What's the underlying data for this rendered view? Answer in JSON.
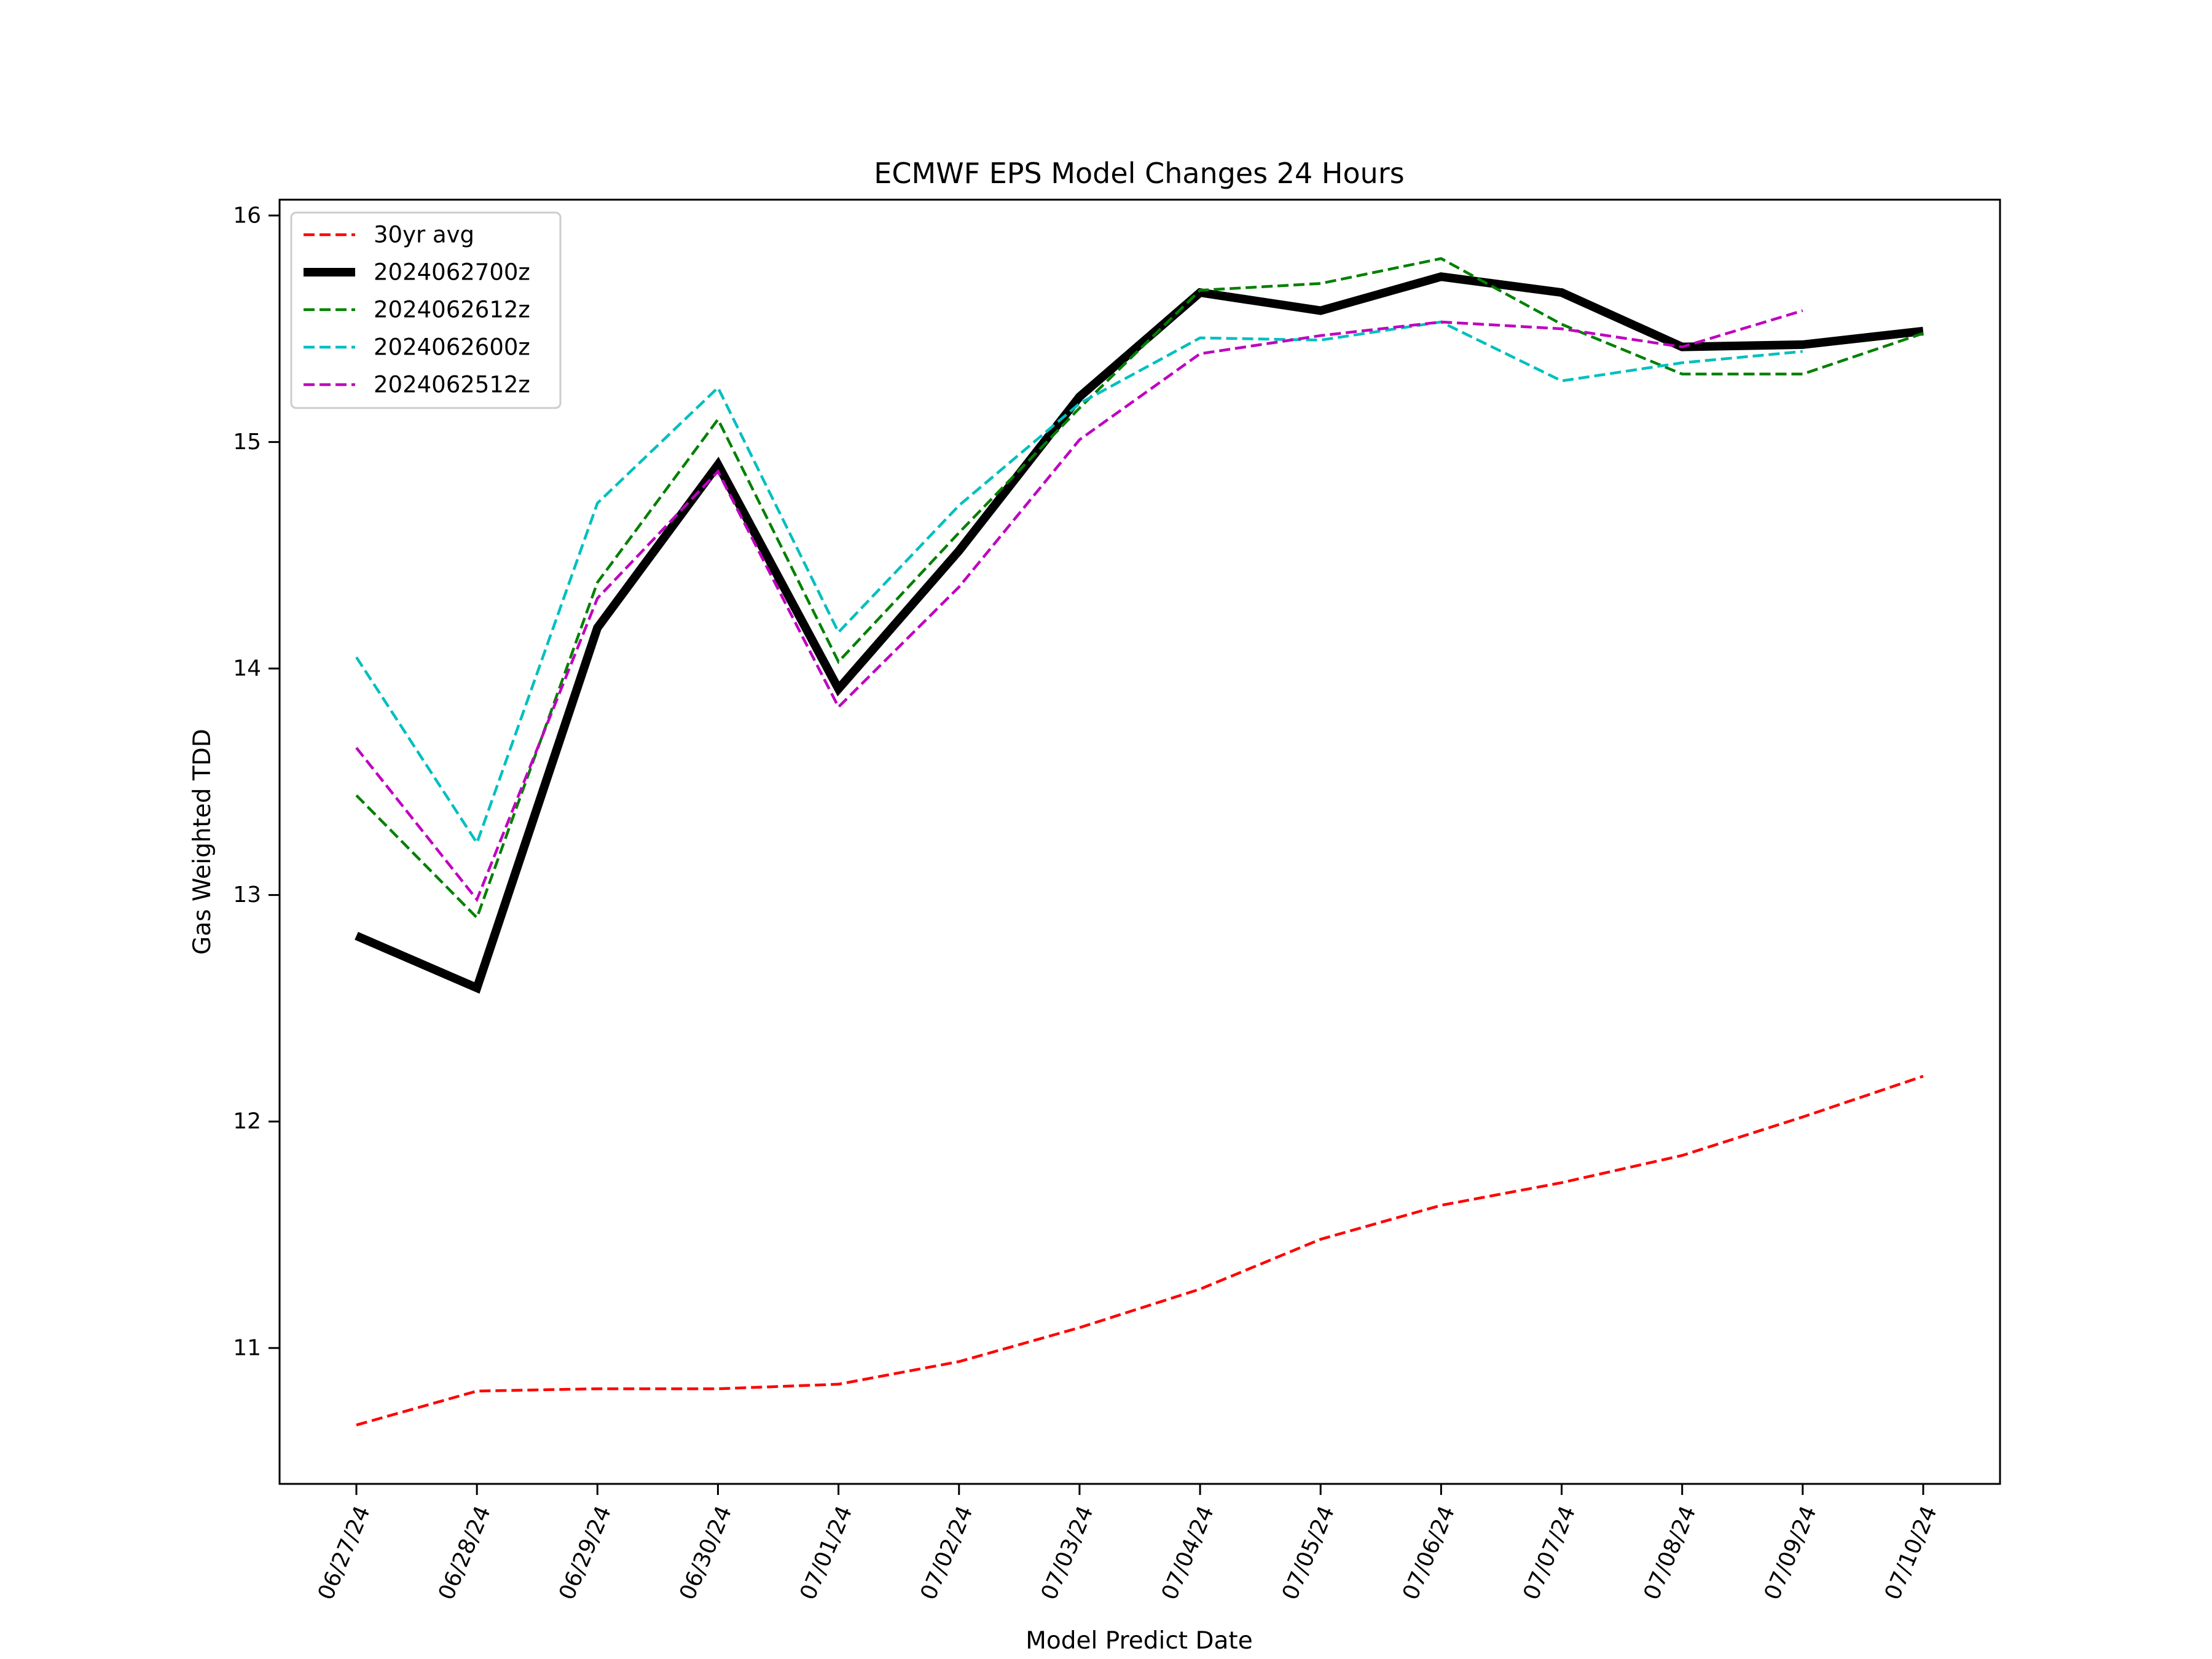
{
  "chart_data": {
    "type": "line",
    "title": "ECMWF EPS Model Changes 24 Hours",
    "xlabel": "Model Predict Date",
    "ylabel": "Gas Weighted TDD",
    "categories": [
      "06/27/24",
      "06/28/24",
      "06/29/24",
      "06/30/24",
      "07/01/24",
      "07/02/24",
      "07/03/24",
      "07/04/24",
      "07/05/24",
      "07/06/24",
      "07/07/24",
      "07/08/24",
      "07/09/24",
      "07/10/24"
    ],
    "ylim": [
      10.4,
      16.07
    ],
    "yticks": [
      11,
      12,
      13,
      14,
      15,
      16
    ],
    "legend_position": "upper-left",
    "grid": false,
    "series": [
      {
        "name": "30yr avg",
        "color": "#ff0000",
        "style": "dashed",
        "width": "thin",
        "values": [
          10.66,
          10.81,
          10.82,
          10.82,
          10.84,
          10.94,
          11.09,
          11.26,
          11.48,
          11.63,
          11.73,
          11.85,
          12.02,
          12.2
        ]
      },
      {
        "name": "2024062700z",
        "color": "#000000",
        "style": "solid",
        "width": "thick",
        "values": [
          12.82,
          12.59,
          14.18,
          14.9,
          13.91,
          14.52,
          15.2,
          15.66,
          15.58,
          15.73,
          15.66,
          15.42,
          15.43,
          15.49
        ]
      },
      {
        "name": "2024062612z",
        "color": "#008000",
        "style": "dashed",
        "width": "thin",
        "values": [
          13.44,
          12.9,
          14.38,
          15.1,
          14.03,
          14.6,
          15.15,
          15.67,
          15.7,
          15.81,
          15.52,
          15.3,
          15.3,
          15.48
        ]
      },
      {
        "name": "2024062600z",
        "color": "#00bfbf",
        "style": "dashed",
        "width": "thin",
        "values": [
          14.05,
          13.23,
          14.73,
          15.24,
          14.16,
          14.72,
          15.17,
          15.46,
          15.45,
          15.53,
          15.27,
          15.35,
          15.4,
          null
        ]
      },
      {
        "name": "2024062512z",
        "color": "#bf00bf",
        "style": "dashed",
        "width": "thin",
        "values": [
          13.65,
          12.98,
          14.31,
          14.87,
          13.83,
          14.36,
          15.01,
          15.39,
          15.47,
          15.53,
          15.5,
          15.42,
          15.58,
          null
        ]
      }
    ]
  }
}
